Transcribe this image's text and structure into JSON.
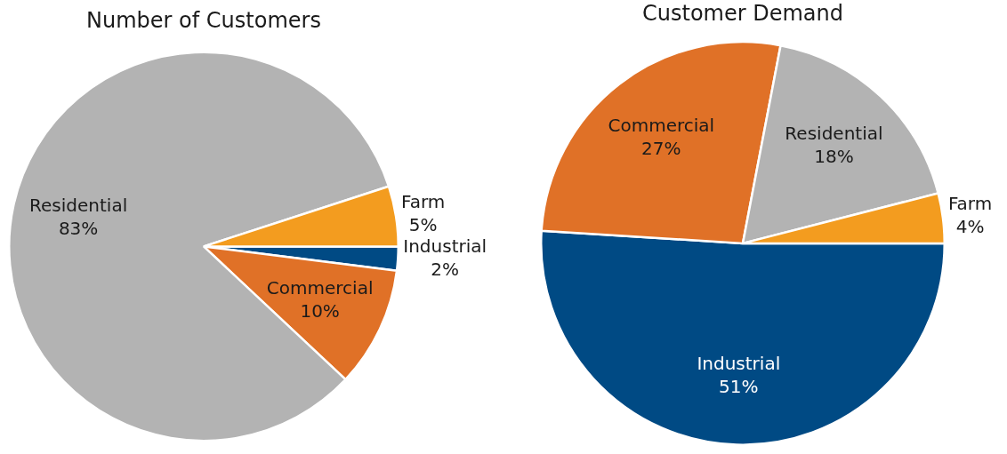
{
  "chart_data": [
    {
      "type": "pie",
      "title": "Number of Customers",
      "categories": [
        "Industrial",
        "Commercial",
        "Residential",
        "Farm"
      ],
      "values": [
        2,
        10,
        83,
        5
      ],
      "value_labels": [
        "2%",
        "10%",
        "83%",
        "5%"
      ],
      "colors": [
        "#004a84",
        "#e07127",
        "#b3b3b3",
        "#f39c1f"
      ],
      "legend": false
    },
    {
      "type": "pie",
      "title": "Customer Demand",
      "categories": [
        "Industrial",
        "Commercial",
        "Residential",
        "Farm"
      ],
      "values": [
        51,
        27,
        18,
        4
      ],
      "value_labels": [
        "51%",
        "27%",
        "18%",
        "4%"
      ],
      "colors": [
        "#004a84",
        "#e07127",
        "#b3b3b3",
        "#f39c1f"
      ],
      "legend": false
    }
  ]
}
